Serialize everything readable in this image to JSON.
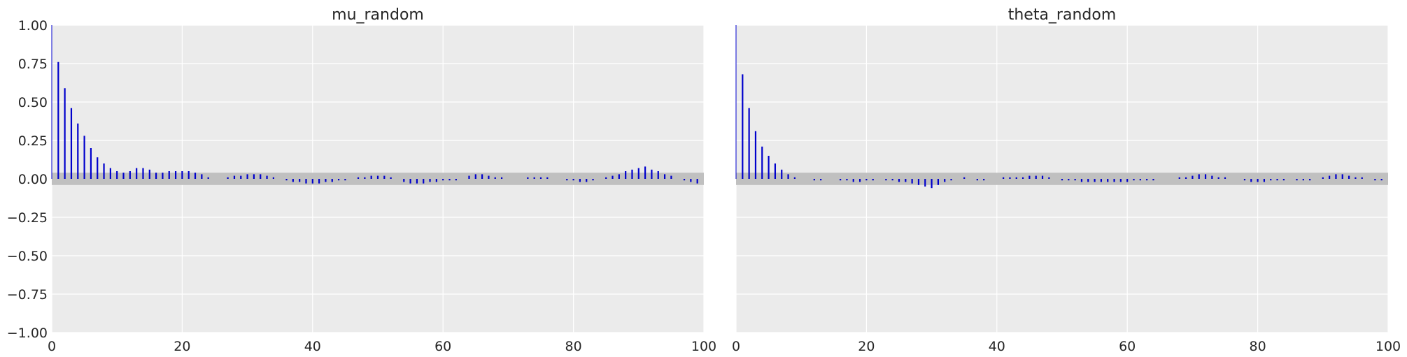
{
  "chart_data": [
    {
      "type": "bar",
      "title": "mu_random",
      "xlabel": "",
      "ylabel": "",
      "xlim": [
        0,
        100
      ],
      "ylim": [
        -1.0,
        1.0
      ],
      "x_ticks": [
        0,
        20,
        40,
        60,
        80,
        100
      ],
      "x_tick_labels": [
        "0",
        "20",
        "40",
        "60",
        "80",
        "100"
      ],
      "y_ticks": [
        1.0,
        0.75,
        0.5,
        0.25,
        0.0,
        -0.25,
        -0.5,
        -0.75,
        -1.0
      ],
      "y_tick_labels": [
        "1.00",
        "0.75",
        "0.50",
        "0.25",
        "0.00",
        "−0.25",
        "−0.50",
        "−0.75",
        "−1.00"
      ],
      "grid": true,
      "confidence_band": [
        -0.04,
        0.04
      ],
      "lags": [
        0,
        1,
        2,
        3,
        4,
        5,
        6,
        7,
        8,
        9,
        10,
        11,
        12,
        13,
        14,
        15,
        16,
        17,
        18,
        19,
        20,
        21,
        22,
        23,
        24,
        25,
        26,
        27,
        28,
        29,
        30,
        31,
        32,
        33,
        34,
        35,
        36,
        37,
        38,
        39,
        40,
        41,
        42,
        43,
        44,
        45,
        46,
        47,
        48,
        49,
        50,
        51,
        52,
        53,
        54,
        55,
        56,
        57,
        58,
        59,
        60,
        61,
        62,
        63,
        64,
        65,
        66,
        67,
        68,
        69,
        70,
        71,
        72,
        73,
        74,
        75,
        76,
        77,
        78,
        79,
        80,
        81,
        82,
        83,
        84,
        85,
        86,
        87,
        88,
        89,
        90,
        91,
        92,
        93,
        94,
        95,
        96,
        97,
        98,
        99
      ],
      "values": [
        1.0,
        0.76,
        0.59,
        0.46,
        0.36,
        0.28,
        0.2,
        0.14,
        0.1,
        0.07,
        0.05,
        0.04,
        0.05,
        0.07,
        0.07,
        0.06,
        0.04,
        0.04,
        0.05,
        0.05,
        0.05,
        0.05,
        0.04,
        0.03,
        0.01,
        0.0,
        0.0,
        0.01,
        0.02,
        0.02,
        0.03,
        0.03,
        0.03,
        0.02,
        0.01,
        0.0,
        -0.01,
        -0.02,
        -0.02,
        -0.03,
        -0.03,
        -0.03,
        -0.02,
        -0.02,
        -0.01,
        -0.01,
        0.0,
        0.01,
        0.01,
        0.02,
        0.02,
        0.02,
        0.01,
        0.0,
        -0.02,
        -0.03,
        -0.03,
        -0.03,
        -0.02,
        -0.02,
        -0.01,
        -0.01,
        -0.01,
        0.0,
        0.02,
        0.03,
        0.03,
        0.02,
        0.01,
        0.01,
        0.0,
        0.0,
        0.0,
        0.01,
        0.01,
        0.01,
        0.01,
        0.0,
        0.0,
        -0.01,
        -0.01,
        -0.02,
        -0.02,
        -0.01,
        0.0,
        0.01,
        0.02,
        0.03,
        0.05,
        0.06,
        0.07,
        0.08,
        0.06,
        0.05,
        0.03,
        0.02,
        0.0,
        -0.01,
        -0.02,
        -0.03
      ]
    },
    {
      "type": "bar",
      "title": "theta_random",
      "xlabel": "",
      "ylabel": "",
      "xlim": [
        0,
        100
      ],
      "ylim": [
        -1.0,
        1.0
      ],
      "x_ticks": [
        0,
        20,
        40,
        60,
        80,
        100
      ],
      "x_tick_labels": [
        "0",
        "20",
        "40",
        "60",
        "80",
        "100"
      ],
      "y_ticks": [
        1.0,
        0.75,
        0.5,
        0.25,
        0.0,
        -0.25,
        -0.5,
        -0.75,
        -1.0
      ],
      "y_tick_labels": [],
      "grid": true,
      "confidence_band": [
        -0.04,
        0.04
      ],
      "lags": [
        0,
        1,
        2,
        3,
        4,
        5,
        6,
        7,
        8,
        9,
        10,
        11,
        12,
        13,
        14,
        15,
        16,
        17,
        18,
        19,
        20,
        21,
        22,
        23,
        24,
        25,
        26,
        27,
        28,
        29,
        30,
        31,
        32,
        33,
        34,
        35,
        36,
        37,
        38,
        39,
        40,
        41,
        42,
        43,
        44,
        45,
        46,
        47,
        48,
        49,
        50,
        51,
        52,
        53,
        54,
        55,
        56,
        57,
        58,
        59,
        60,
        61,
        62,
        63,
        64,
        65,
        66,
        67,
        68,
        69,
        70,
        71,
        72,
        73,
        74,
        75,
        76,
        77,
        78,
        79,
        80,
        81,
        82,
        83,
        84,
        85,
        86,
        87,
        88,
        89,
        90,
        91,
        92,
        93,
        94,
        95,
        96,
        97,
        98,
        99
      ],
      "values": [
        1.0,
        0.68,
        0.46,
        0.31,
        0.21,
        0.15,
        0.1,
        0.06,
        0.03,
        0.01,
        0.0,
        0.0,
        -0.01,
        -0.01,
        0.0,
        0.0,
        -0.01,
        -0.01,
        -0.02,
        -0.02,
        -0.01,
        -0.01,
        0.0,
        -0.01,
        -0.01,
        -0.02,
        -0.02,
        -0.03,
        -0.04,
        -0.05,
        -0.06,
        -0.04,
        -0.02,
        -0.01,
        0.0,
        0.01,
        0.0,
        -0.01,
        -0.01,
        0.0,
        0.0,
        0.01,
        0.01,
        0.01,
        0.01,
        0.02,
        0.02,
        0.02,
        0.01,
        0.0,
        -0.01,
        -0.01,
        -0.01,
        -0.02,
        -0.02,
        -0.02,
        -0.02,
        -0.02,
        -0.02,
        -0.02,
        -0.02,
        -0.01,
        -0.01,
        -0.01,
        -0.01,
        0.0,
        0.0,
        0.0,
        0.01,
        0.01,
        0.02,
        0.03,
        0.03,
        0.02,
        0.01,
        0.01,
        0.0,
        0.0,
        -0.01,
        -0.02,
        -0.02,
        -0.02,
        -0.01,
        -0.01,
        -0.01,
        0.0,
        -0.01,
        -0.01,
        -0.01,
        0.0,
        0.01,
        0.02,
        0.03,
        0.03,
        0.02,
        0.01,
        0.01,
        0.0,
        -0.01,
        -0.01
      ]
    }
  ],
  "colors": {
    "plot_background": "#ebebeb",
    "grid": "#ffffff",
    "band": "#c0c0c0",
    "stems": "#0000cc",
    "text": "#262626"
  }
}
